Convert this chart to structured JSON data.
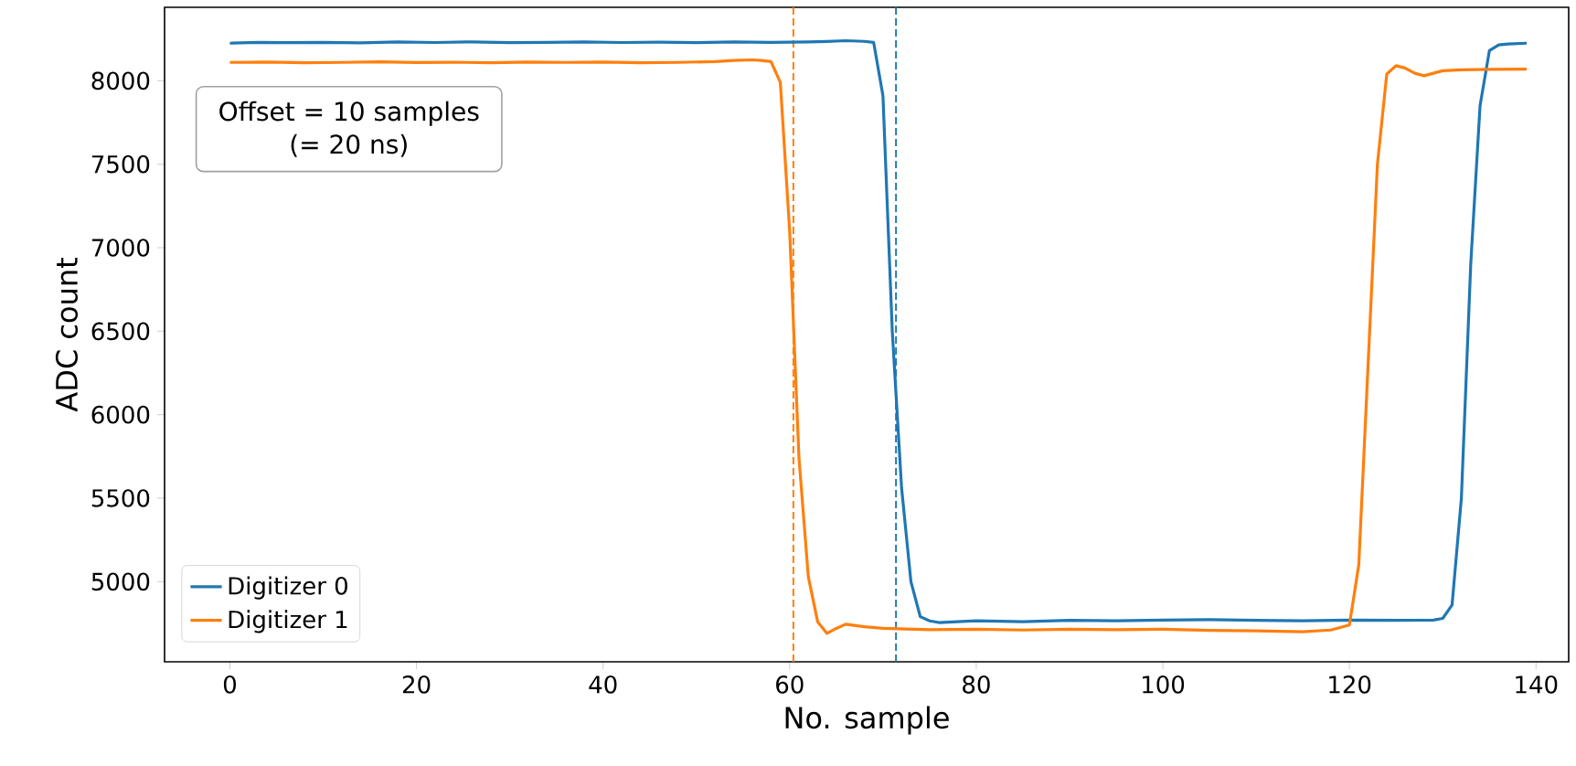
{
  "chart_data": {
    "type": "line",
    "xlabel": "No. sample",
    "ylabel": "ADC count",
    "xlim": [
      -7,
      143.5
    ],
    "ylim": [
      4520,
      8440
    ],
    "xticks": [
      0,
      20,
      40,
      60,
      80,
      100,
      120,
      140
    ],
    "yticks": [
      5000,
      5500,
      6000,
      6500,
      7000,
      7500,
      8000
    ],
    "legend": "bottom left",
    "grid": false,
    "annotations": [
      "Offset = 10 samples",
      "(= 20 ns)"
    ],
    "ref_lines": [
      {
        "axis": "x",
        "value": 60.4,
        "color": "#ff7f0e",
        "line_style": "dashed"
      },
      {
        "axis": "x",
        "value": 71.4,
        "color": "#1f77b4",
        "line_style": "dashed"
      }
    ],
    "series": [
      {
        "name": "Digitizer 0",
        "color": "#1f77b4",
        "x": [
          0,
          3,
          6,
          10,
          14,
          18,
          22,
          26,
          30,
          34,
          38,
          42,
          46,
          50,
          54,
          58,
          62,
          64,
          66,
          68,
          69,
          70,
          71,
          72,
          73,
          74,
          75,
          76,
          80,
          85,
          90,
          95,
          100,
          105,
          110,
          115,
          120,
          125,
          129,
          130,
          131,
          132,
          133,
          134,
          135,
          136,
          137,
          139
        ],
        "values": [
          8225,
          8230,
          8228,
          8230,
          8227,
          8232,
          8229,
          8233,
          8228,
          8230,
          8232,
          8229,
          8231,
          8228,
          8233,
          8230,
          8232,
          8235,
          8240,
          8236,
          8230,
          7910,
          6500,
          5560,
          5000,
          4790,
          4765,
          4755,
          4765,
          4760,
          4768,
          4765,
          4770,
          4772,
          4768,
          4765,
          4770,
          4768,
          4770,
          4780,
          4860,
          5500,
          6900,
          7850,
          8180,
          8215,
          8220,
          8225
        ]
      },
      {
        "name": "Digitizer 1",
        "color": "#ff7f0e",
        "x": [
          0,
          4,
          8,
          12,
          16,
          20,
          24,
          28,
          32,
          36,
          40,
          44,
          48,
          52,
          54,
          56,
          57,
          58,
          59,
          60,
          61,
          62,
          63,
          64,
          65,
          66,
          68,
          70,
          75,
          80,
          85,
          90,
          95,
          100,
          105,
          110,
          115,
          118,
          119,
          120,
          121,
          122,
          123,
          124,
          125,
          126,
          127,
          128,
          130,
          132,
          135,
          139
        ],
        "values": [
          8110,
          8112,
          8108,
          8110,
          8113,
          8109,
          8111,
          8108,
          8112,
          8110,
          8112,
          8108,
          8110,
          8115,
          8122,
          8125,
          8122,
          8115,
          7990,
          7100,
          5740,
          5030,
          4760,
          4690,
          4720,
          4745,
          4730,
          4720,
          4712,
          4715,
          4710,
          4715,
          4712,
          4715,
          4708,
          4705,
          4700,
          4710,
          4725,
          4740,
          5100,
          6300,
          7500,
          8040,
          8090,
          8075,
          8045,
          8030,
          8060,
          8065,
          8068,
          8070
        ]
      }
    ]
  }
}
